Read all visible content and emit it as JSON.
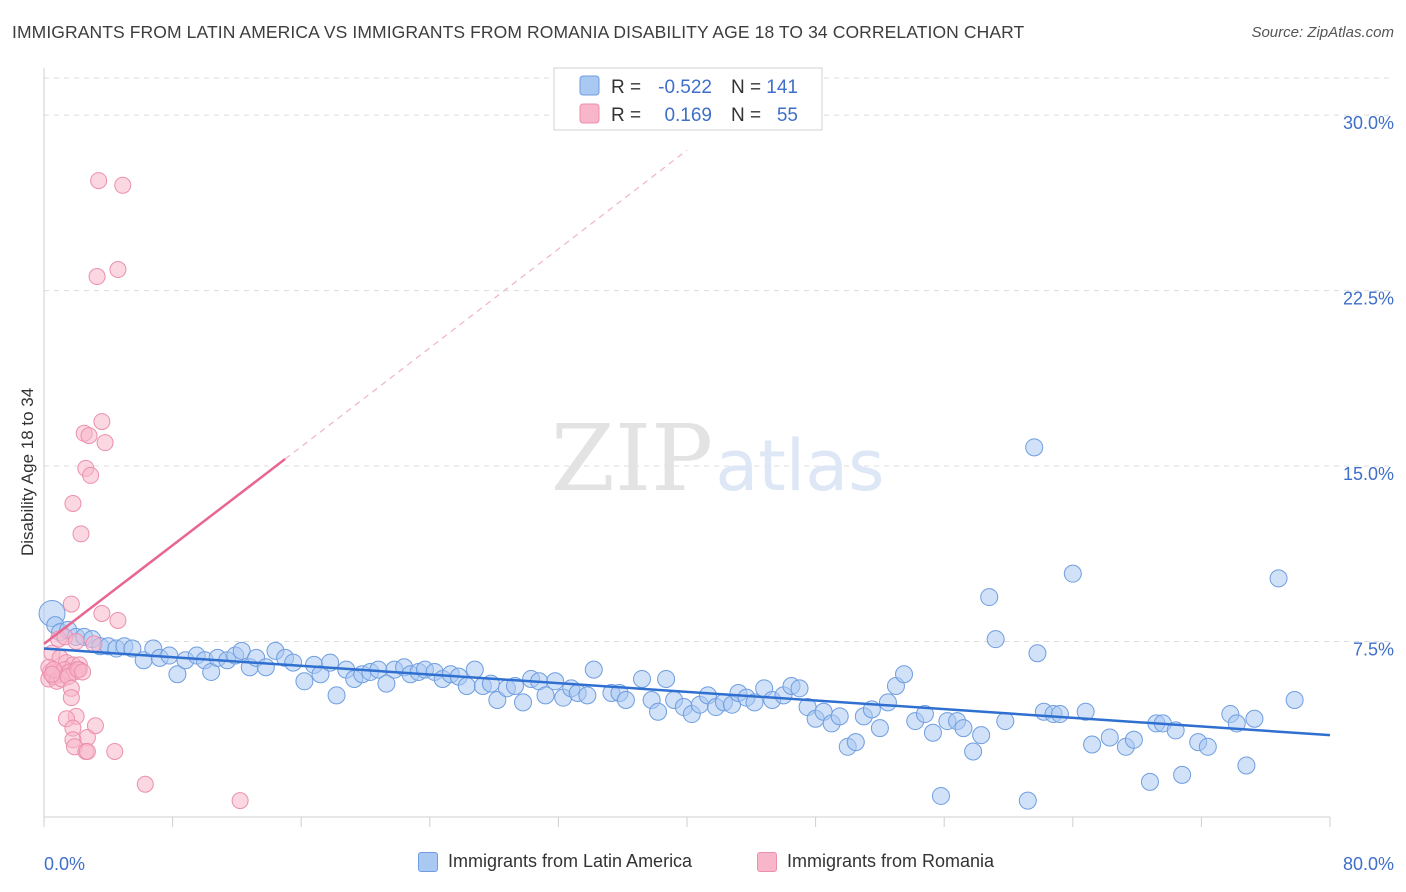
{
  "header": {
    "title": "IMMIGRANTS FROM LATIN AMERICA VS IMMIGRANTS FROM ROMANIA DISABILITY AGE 18 TO 34 CORRELATION CHART",
    "source": "Source: ZipAtlas.com"
  },
  "watermark": {
    "zip": "ZIP",
    "atlas": "atlas"
  },
  "colors": {
    "blue_fill": "#a9c8f2",
    "blue_stroke": "#6f9ee0",
    "blue_line": "#2f6fd0",
    "pink_fill": "#f7b6ca",
    "pink_stroke": "#ec8fac",
    "pink_line": "#e8668f",
    "axis_text": "#3f6fc9",
    "grid": "#dcdcdc"
  },
  "legend": {
    "r_label": "R =",
    "n_label": "N =",
    "rows": [
      {
        "r": "-0.522",
        "n": "141"
      },
      {
        "r": "0.169",
        "n": "55"
      }
    ]
  },
  "chart_data": {
    "type": "scatter",
    "title": "IMMIGRANTS FROM LATIN AMERICA VS IMMIGRANTS FROM ROMANIA DISABILITY AGE 18 TO 34 CORRELATION CHART",
    "xlabel": "",
    "ylabel": "Disability Age 18 to 34",
    "xlim": [
      0,
      80
    ],
    "ylim": [
      0,
      31.5
    ],
    "x_tick_labels": [
      "0.0%",
      "80.0%"
    ],
    "y_ticks": [
      7.5,
      15.0,
      22.5,
      30.0
    ],
    "y_tick_labels": [
      "7.5%",
      "15.0%",
      "22.5%",
      "30.0%"
    ],
    "grid": "horizontal dashed",
    "legend_position": "top-center and bottom",
    "series": [
      {
        "name": "Immigrants from Latin America",
        "r": -0.522,
        "n": 141,
        "trend": {
          "x": [
            0,
            80
          ],
          "y": [
            7.2,
            3.5
          ]
        },
        "points": [
          [
            0.5,
            8.7
          ],
          [
            0.7,
            8.2
          ],
          [
            1.0,
            7.9
          ],
          [
            1.5,
            8.0
          ],
          [
            2.0,
            7.7
          ],
          [
            2.5,
            7.7
          ],
          [
            3.0,
            7.6
          ],
          [
            3.5,
            7.3
          ],
          [
            4.0,
            7.3
          ],
          [
            4.5,
            7.2
          ],
          [
            5.0,
            7.3
          ],
          [
            5.5,
            7.2
          ],
          [
            6.2,
            6.7
          ],
          [
            6.8,
            7.2
          ],
          [
            7.2,
            6.8
          ],
          [
            7.8,
            6.9
          ],
          [
            8.3,
            6.1
          ],
          [
            8.8,
            6.7
          ],
          [
            9.5,
            6.9
          ],
          [
            10.0,
            6.7
          ],
          [
            10.4,
            6.2
          ],
          [
            10.8,
            6.8
          ],
          [
            11.4,
            6.7
          ],
          [
            11.9,
            6.9
          ],
          [
            12.3,
            7.1
          ],
          [
            12.8,
            6.4
          ],
          [
            13.2,
            6.8
          ],
          [
            13.8,
            6.4
          ],
          [
            14.4,
            7.1
          ],
          [
            15.0,
            6.8
          ],
          [
            15.5,
            6.6
          ],
          [
            16.2,
            5.8
          ],
          [
            16.8,
            6.5
          ],
          [
            17.2,
            6.1
          ],
          [
            17.8,
            6.6
          ],
          [
            18.2,
            5.2
          ],
          [
            18.8,
            6.3
          ],
          [
            19.3,
            5.9
          ],
          [
            19.8,
            6.1
          ],
          [
            20.3,
            6.2
          ],
          [
            20.8,
            6.3
          ],
          [
            21.3,
            5.7
          ],
          [
            21.8,
            6.3
          ],
          [
            22.4,
            6.4
          ],
          [
            22.8,
            6.1
          ],
          [
            23.3,
            6.2
          ],
          [
            23.7,
            6.3
          ],
          [
            24.3,
            6.2
          ],
          [
            24.8,
            5.9
          ],
          [
            25.3,
            6.1
          ],
          [
            25.8,
            6.0
          ],
          [
            26.3,
            5.6
          ],
          [
            26.8,
            6.3
          ],
          [
            27.3,
            5.6
          ],
          [
            27.8,
            5.7
          ],
          [
            28.2,
            5.0
          ],
          [
            28.8,
            5.5
          ],
          [
            29.3,
            5.6
          ],
          [
            29.8,
            4.9
          ],
          [
            30.3,
            5.9
          ],
          [
            30.8,
            5.8
          ],
          [
            31.2,
            5.2
          ],
          [
            31.8,
            5.8
          ],
          [
            32.3,
            5.1
          ],
          [
            32.8,
            5.5
          ],
          [
            33.2,
            5.3
          ],
          [
            33.8,
            5.2
          ],
          [
            34.2,
            6.3
          ],
          [
            35.3,
            5.3
          ],
          [
            35.8,
            5.3
          ],
          [
            36.2,
            5.0
          ],
          [
            37.2,
            5.9
          ],
          [
            37.8,
            5.0
          ],
          [
            38.2,
            4.5
          ],
          [
            38.7,
            5.9
          ],
          [
            39.2,
            5.0
          ],
          [
            39.8,
            4.7
          ],
          [
            40.3,
            4.4
          ],
          [
            40.8,
            4.8
          ],
          [
            41.3,
            5.2
          ],
          [
            41.8,
            4.7
          ],
          [
            42.3,
            4.9
          ],
          [
            42.8,
            4.8
          ],
          [
            43.2,
            5.3
          ],
          [
            43.7,
            5.1
          ],
          [
            44.2,
            4.9
          ],
          [
            44.8,
            5.5
          ],
          [
            45.3,
            5.0
          ],
          [
            46.0,
            5.2
          ],
          [
            46.5,
            5.6
          ],
          [
            47.0,
            5.5
          ],
          [
            47.5,
            4.7
          ],
          [
            48.0,
            4.2
          ],
          [
            48.5,
            4.5
          ],
          [
            49.0,
            4.0
          ],
          [
            49.5,
            4.3
          ],
          [
            50.0,
            3.0
          ],
          [
            50.5,
            3.2
          ],
          [
            51.0,
            4.3
          ],
          [
            51.5,
            4.6
          ],
          [
            52.0,
            3.8
          ],
          [
            52.5,
            4.9
          ],
          [
            53.0,
            5.6
          ],
          [
            53.5,
            6.1
          ],
          [
            54.2,
            4.1
          ],
          [
            54.8,
            4.4
          ],
          [
            55.3,
            3.6
          ],
          [
            55.8,
            0.9
          ],
          [
            56.2,
            4.1
          ],
          [
            56.8,
            4.1
          ],
          [
            57.2,
            3.8
          ],
          [
            57.8,
            2.8
          ],
          [
            58.3,
            3.5
          ],
          [
            58.8,
            9.4
          ],
          [
            59.2,
            7.6
          ],
          [
            59.8,
            4.1
          ],
          [
            61.2,
            0.7
          ],
          [
            61.6,
            15.8
          ],
          [
            61.8,
            7.0
          ],
          [
            62.2,
            4.5
          ],
          [
            62.8,
            4.4
          ],
          [
            64.0,
            10.4
          ],
          [
            63.2,
            4.4
          ],
          [
            64.8,
            4.5
          ],
          [
            65.2,
            3.1
          ],
          [
            66.3,
            3.4
          ],
          [
            67.3,
            3.0
          ],
          [
            67.8,
            3.3
          ],
          [
            68.8,
            1.5
          ],
          [
            69.2,
            4.0
          ],
          [
            69.6,
            4.0
          ],
          [
            70.4,
            3.7
          ],
          [
            70.8,
            1.8
          ],
          [
            71.8,
            3.2
          ],
          [
            73.8,
            4.4
          ],
          [
            74.2,
            4.0
          ],
          [
            74.8,
            2.2
          ],
          [
            75.3,
            4.2
          ],
          [
            76.8,
            10.2
          ],
          [
            77.8,
            5.0
          ],
          [
            72.4,
            3.0
          ]
        ]
      },
      {
        "name": "Immigrants from Romania",
        "r": 0.169,
        "n": 55,
        "trend": {
          "x": [
            0,
            15
          ],
          "y": [
            7.4,
            15.3
          ]
        },
        "trend_extension": {
          "x": [
            15,
            40
          ],
          "y": [
            15.3,
            28.5
          ]
        },
        "points": [
          [
            3.4,
            27.2
          ],
          [
            4.9,
            27.0
          ],
          [
            3.3,
            23.1
          ],
          [
            4.6,
            23.4
          ],
          [
            3.6,
            16.9
          ],
          [
            2.5,
            16.4
          ],
          [
            2.8,
            16.3
          ],
          [
            3.8,
            16.0
          ],
          [
            2.6,
            14.9
          ],
          [
            2.9,
            14.6
          ],
          [
            1.8,
            13.4
          ],
          [
            2.3,
            12.1
          ],
          [
            1.7,
            9.1
          ],
          [
            3.6,
            8.7
          ],
          [
            4.6,
            8.4
          ],
          [
            0.9,
            7.6
          ],
          [
            1.3,
            7.7
          ],
          [
            2.0,
            7.5
          ],
          [
            3.1,
            7.4
          ],
          [
            0.5,
            7.0
          ],
          [
            1.0,
            6.8
          ],
          [
            1.4,
            6.6
          ],
          [
            1.8,
            6.5
          ],
          [
            2.2,
            6.5
          ],
          [
            0.4,
            6.2
          ],
          [
            0.7,
            6.2
          ],
          [
            1.0,
            6.1
          ],
          [
            1.3,
            6.3
          ],
          [
            1.6,
            6.2
          ],
          [
            1.9,
            6.2
          ],
          [
            2.2,
            6.3
          ],
          [
            0.3,
            5.9
          ],
          [
            0.6,
            6.0
          ],
          [
            0.8,
            5.8
          ],
          [
            1.1,
            5.9
          ],
          [
            1.5,
            6.0
          ],
          [
            2.1,
            6.3
          ],
          [
            0.3,
            6.4
          ],
          [
            0.6,
            6.3
          ],
          [
            0.5,
            6.1
          ],
          [
            1.7,
            5.5
          ],
          [
            1.7,
            5.1
          ],
          [
            2.0,
            4.3
          ],
          [
            1.4,
            4.2
          ],
          [
            1.8,
            3.8
          ],
          [
            2.7,
            3.4
          ],
          [
            1.8,
            3.3
          ],
          [
            1.9,
            3.0
          ],
          [
            2.6,
            2.8
          ],
          [
            2.7,
            2.8
          ],
          [
            4.4,
            2.8
          ],
          [
            6.3,
            1.4
          ],
          [
            12.2,
            0.7
          ],
          [
            3.2,
            3.9
          ],
          [
            2.4,
            6.2
          ]
        ]
      }
    ]
  },
  "legend_bottom": [
    {
      "label": "Immigrants from Latin America"
    },
    {
      "label": "Immigrants from Romania"
    }
  ]
}
